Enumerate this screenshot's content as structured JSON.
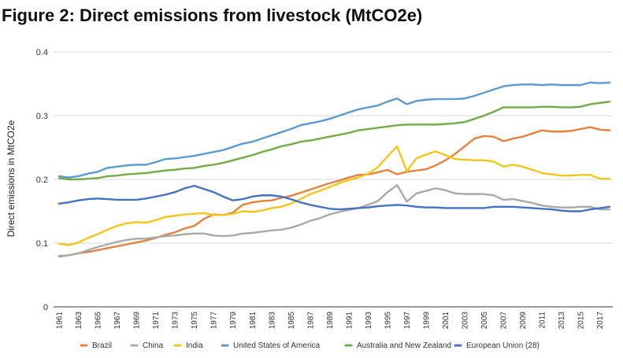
{
  "chart_data": {
    "type": "line",
    "title": "Figure 2: Direct emissions from livestock (MtCO2e)",
    "ylabel": "Direct emissions in MtCO2e",
    "xlabel": "",
    "ylim": [
      0,
      0.4
    ],
    "yticks": [
      "0",
      "0.1",
      "0.2",
      "0.3",
      "0.4"
    ],
    "grid": "horizontal",
    "legend_position": "bottom",
    "x": [
      1961,
      1962,
      1963,
      1964,
      1965,
      1966,
      1967,
      1968,
      1969,
      1970,
      1971,
      1972,
      1973,
      1974,
      1975,
      1976,
      1977,
      1978,
      1979,
      1980,
      1981,
      1982,
      1983,
      1984,
      1985,
      1986,
      1987,
      1988,
      1989,
      1990,
      1991,
      1992,
      1993,
      1994,
      1995,
      1996,
      1997,
      1998,
      1999,
      2000,
      2001,
      2002,
      2003,
      2004,
      2005,
      2006,
      2007,
      2008,
      2009,
      2010,
      2011,
      2012,
      2013,
      2014,
      2015,
      2016,
      2017,
      2018
    ],
    "xtick_labels": [
      "1961",
      "1963",
      "1965",
      "1967",
      "1969",
      "1971",
      "1973",
      "1975",
      "1977",
      "1979",
      "1981",
      "1983",
      "1985",
      "1987",
      "1989",
      "1991",
      "1993",
      "1995",
      "1997",
      "1999",
      "2001",
      "2003",
      "2005",
      "2007",
      "2009",
      "2011",
      "2013",
      "2015",
      "2017"
    ],
    "series": [
      {
        "name": "Brazil",
        "color": "#e8803d",
        "values": [
          0.079,
          0.081,
          0.084,
          0.086,
          0.089,
          0.092,
          0.095,
          0.098,
          0.101,
          0.104,
          0.108,
          0.113,
          0.117,
          0.123,
          0.127,
          0.138,
          0.145,
          0.144,
          0.148,
          0.16,
          0.164,
          0.166,
          0.167,
          0.171,
          0.174,
          0.179,
          0.184,
          0.189,
          0.194,
          0.198,
          0.203,
          0.207,
          0.208,
          0.211,
          0.215,
          0.208,
          0.212,
          0.214,
          0.216,
          0.222,
          0.23,
          0.24,
          0.252,
          0.264,
          0.268,
          0.267,
          0.26,
          0.264,
          0.267,
          0.272,
          0.277,
          0.275,
          0.275,
          0.276,
          0.279,
          0.282,
          0.278,
          0.277
        ]
      },
      {
        "name": "China",
        "color": "#a9a9a9",
        "values": [
          0.08,
          0.081,
          0.084,
          0.089,
          0.094,
          0.098,
          0.102,
          0.105,
          0.107,
          0.107,
          0.109,
          0.111,
          0.112,
          0.114,
          0.115,
          0.115,
          0.112,
          0.111,
          0.112,
          0.115,
          0.116,
          0.118,
          0.12,
          0.121,
          0.124,
          0.129,
          0.135,
          0.139,
          0.145,
          0.149,
          0.152,
          0.155,
          0.16,
          0.166,
          0.18,
          0.191,
          0.165,
          0.178,
          0.182,
          0.186,
          0.183,
          0.178,
          0.177,
          0.177,
          0.177,
          0.175,
          0.168,
          0.169,
          0.166,
          0.163,
          0.159,
          0.157,
          0.156,
          0.156,
          0.157,
          0.157,
          0.153,
          0.153
        ]
      },
      {
        "name": "India",
        "color": "#f5c518",
        "values": [
          0.099,
          0.097,
          0.101,
          0.108,
          0.114,
          0.121,
          0.127,
          0.131,
          0.133,
          0.132,
          0.136,
          0.141,
          0.143,
          0.145,
          0.146,
          0.147,
          0.144,
          0.144,
          0.146,
          0.15,
          0.149,
          0.151,
          0.155,
          0.157,
          0.162,
          0.169,
          0.177,
          0.182,
          0.188,
          0.194,
          0.199,
          0.203,
          0.209,
          0.219,
          0.236,
          0.252,
          0.213,
          0.233,
          0.239,
          0.244,
          0.238,
          0.232,
          0.231,
          0.23,
          0.23,
          0.228,
          0.22,
          0.223,
          0.22,
          0.215,
          0.21,
          0.208,
          0.206,
          0.206,
          0.207,
          0.207,
          0.201,
          0.201
        ]
      },
      {
        "name": "United States of America",
        "color": "#5b9bd5",
        "values": [
          0.205,
          0.203,
          0.205,
          0.209,
          0.212,
          0.218,
          0.22,
          0.222,
          0.223,
          0.223,
          0.227,
          0.232,
          0.233,
          0.235,
          0.237,
          0.24,
          0.243,
          0.246,
          0.251,
          0.256,
          0.259,
          0.264,
          0.269,
          0.274,
          0.279,
          0.285,
          0.288,
          0.291,
          0.295,
          0.3,
          0.305,
          0.31,
          0.313,
          0.316,
          0.322,
          0.327,
          0.318,
          0.323,
          0.325,
          0.326,
          0.326,
          0.326,
          0.327,
          0.331,
          0.336,
          0.341,
          0.346,
          0.348,
          0.349,
          0.349,
          0.348,
          0.349,
          0.348,
          0.348,
          0.348,
          0.352,
          0.351,
          0.352
        ]
      },
      {
        "name": "Australia and New Zealand",
        "color": "#70ad47",
        "values": [
          0.202,
          0.2,
          0.2,
          0.201,
          0.202,
          0.205,
          0.206,
          0.208,
          0.209,
          0.21,
          0.212,
          0.214,
          0.215,
          0.217,
          0.218,
          0.221,
          0.223,
          0.226,
          0.23,
          0.234,
          0.238,
          0.243,
          0.247,
          0.252,
          0.255,
          0.259,
          0.261,
          0.264,
          0.267,
          0.27,
          0.273,
          0.277,
          0.279,
          0.281,
          0.283,
          0.285,
          0.286,
          0.286,
          0.286,
          0.286,
          0.287,
          0.288,
          0.29,
          0.295,
          0.3,
          0.306,
          0.313,
          0.313,
          0.313,
          0.313,
          0.314,
          0.314,
          0.313,
          0.313,
          0.314,
          0.318,
          0.32,
          0.322
        ]
      },
      {
        "name": "European Union (28)",
        "color": "#4472c4",
        "values": [
          0.162,
          0.164,
          0.167,
          0.169,
          0.17,
          0.169,
          0.168,
          0.168,
          0.168,
          0.17,
          0.173,
          0.176,
          0.18,
          0.186,
          0.19,
          0.185,
          0.18,
          0.173,
          0.167,
          0.169,
          0.173,
          0.175,
          0.175,
          0.173,
          0.169,
          0.164,
          0.16,
          0.157,
          0.154,
          0.153,
          0.154,
          0.155,
          0.156,
          0.158,
          0.159,
          0.16,
          0.159,
          0.157,
          0.156,
          0.156,
          0.155,
          0.155,
          0.155,
          0.155,
          0.155,
          0.157,
          0.157,
          0.157,
          0.156,
          0.155,
          0.154,
          0.153,
          0.151,
          0.15,
          0.15,
          0.153,
          0.155,
          0.157
        ]
      }
    ]
  }
}
